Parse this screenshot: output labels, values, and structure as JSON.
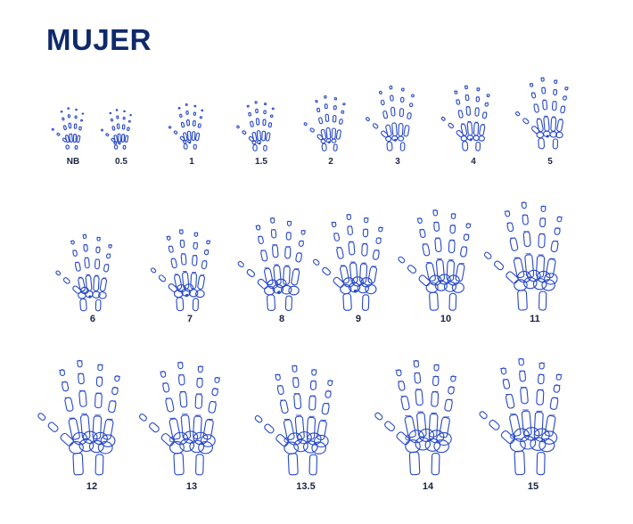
{
  "title": "MUJER",
  "colors": {
    "bone_stroke": "#2748c8",
    "title": "#0f2a6b",
    "label": "#1b2342"
  },
  "rows": [
    {
      "hands": [
        {
          "label": "NB",
          "maturity": 0.0,
          "carpals": 0
        },
        {
          "label": "0.5",
          "maturity": 0.06,
          "carpals": 2
        },
        {
          "label": "1",
          "maturity": 0.12,
          "carpals": 2
        },
        {
          "label": "1.5",
          "maturity": 0.18,
          "carpals": 2
        },
        {
          "label": "2",
          "maturity": 0.24,
          "carpals": 3
        },
        {
          "label": "3",
          "maturity": 0.3,
          "carpals": 3
        },
        {
          "label": "4",
          "maturity": 0.36,
          "carpals": 4
        },
        {
          "label": "5",
          "maturity": 0.42,
          "carpals": 4
        }
      ]
    },
    {
      "hands": [
        {
          "label": "6",
          "maturity": 0.5,
          "carpals": 5
        },
        {
          "label": "7",
          "maturity": 0.56,
          "carpals": 6
        },
        {
          "label": "8",
          "maturity": 0.62,
          "carpals": 6
        },
        {
          "label": "9",
          "maturity": 0.67,
          "carpals": 7
        },
        {
          "label": "10",
          "maturity": 0.72,
          "carpals": 7
        },
        {
          "label": "11",
          "maturity": 0.78,
          "carpals": 8
        }
      ]
    },
    {
      "hands": [
        {
          "label": "12",
          "maturity": 0.84,
          "carpals": 8
        },
        {
          "label": "13",
          "maturity": 0.88,
          "carpals": 8
        },
        {
          "label": "13.5",
          "maturity": 0.92,
          "carpals": 8
        },
        {
          "label": "14",
          "maturity": 0.96,
          "carpals": 8
        },
        {
          "label": "15",
          "maturity": 1.0,
          "carpals": 8
        }
      ]
    }
  ]
}
